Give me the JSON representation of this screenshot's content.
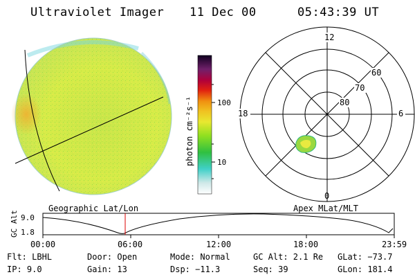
{
  "header": {
    "title": "Ultraviolet Imager",
    "date": "11 Dec 00",
    "time": "05:43:39 UT"
  },
  "colorbar": {
    "unit_label": "photon cm⁻²s⁻¹",
    "ticks": [
      "100",
      "10"
    ]
  },
  "polar": {
    "mlat_labels": [
      "60",
      "70",
      "80"
    ],
    "mlt_labels": [
      "12",
      "18",
      "6",
      "0"
    ]
  },
  "panel_labels": {
    "left": "Geographic Lat/Lon",
    "right": "Apex MLat/MLT"
  },
  "orbit": {
    "axis_label": "GC Alt",
    "y_ticks": [
      "9.0",
      "1.8"
    ],
    "x_ticks": [
      "00:00",
      "06:00",
      "12:00",
      "18:00",
      "23:59"
    ]
  },
  "info": {
    "flt": "Flt: LBHL",
    "ip": "IP:  9.0",
    "door": "Door: Open",
    "gain": "Gain: 13",
    "mode": "Mode: Normal",
    "dsp": "Dsp:  −11.3",
    "gcalt": "GC Alt: 2.1 Re",
    "seq": "Seq: 39",
    "glat": "GLat: −73.7",
    "glon": "GLon: 181.4"
  },
  "colors": {
    "disk_fill": "#d8ec48",
    "marker": "#dd0000"
  }
}
